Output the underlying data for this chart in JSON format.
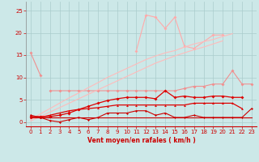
{
  "x": [
    0,
    1,
    2,
    3,
    4,
    5,
    6,
    7,
    8,
    9,
    10,
    11,
    12,
    13,
    14,
    15,
    16,
    17,
    18,
    19,
    20,
    21,
    22,
    23
  ],
  "series": {
    "pink_short": {
      "y": [
        15.5,
        10.5,
        null,
        null,
        null,
        null,
        null,
        null,
        null,
        null,
        null,
        null,
        null,
        null,
        null,
        null,
        null,
        null,
        null,
        null,
        null,
        null,
        null,
        null
      ],
      "color": "#f09090",
      "lw": 0.8,
      "marker": "D",
      "ms": 2
    },
    "pink_flat": {
      "y": [
        null,
        null,
        7.0,
        7.0,
        7.0,
        7.0,
        7.0,
        7.0,
        7.0,
        7.0,
        7.0,
        7.0,
        7.0,
        7.0,
        7.0,
        7.0,
        7.5,
        8.0,
        8.0,
        8.5,
        8.5,
        11.5,
        8.5,
        8.5
      ],
      "color": "#f09090",
      "lw": 0.8,
      "marker": "D",
      "ms": 2
    },
    "pink_peak": {
      "y": [
        null,
        null,
        null,
        null,
        null,
        null,
        null,
        null,
        null,
        null,
        null,
        16.0,
        24.0,
        23.5,
        21.0,
        23.5,
        17.0,
        16.5,
        null,
        19.5,
        19.5,
        null,
        null,
        null
      ],
      "color": "#ffaaaa",
      "lw": 0.8,
      "marker": "D",
      "ms": 2
    },
    "linear_upper": {
      "y": [
        0.5,
        1.8,
        3.0,
        4.2,
        5.4,
        6.5,
        7.7,
        8.8,
        10.0,
        11.0,
        12.0,
        13.0,
        14.0,
        14.8,
        15.5,
        16.0,
        16.8,
        17.5,
        18.0,
        18.5,
        19.2,
        19.8,
        null,
        null
      ],
      "color": "#ffbbbb",
      "lw": 0.8,
      "marker": null,
      "ms": 0
    },
    "linear_lower": {
      "y": [
        0.2,
        1.2,
        2.2,
        3.2,
        4.2,
        5.2,
        6.2,
        7.2,
        8.2,
        9.2,
        10.2,
        11.2,
        12.2,
        13.2,
        14.0,
        14.8,
        15.5,
        16.2,
        16.8,
        17.5,
        18.2,
        null,
        null,
        null
      ],
      "color": "#ffbbbb",
      "lw": 0.8,
      "marker": null,
      "ms": 0
    },
    "red_dots_upper": {
      "y": [
        1.2,
        1.2,
        1.2,
        1.5,
        2.0,
        2.8,
        3.5,
        4.2,
        4.8,
        5.2,
        5.5,
        5.5,
        5.5,
        5.2,
        7.0,
        5.5,
        5.8,
        5.5,
        5.5,
        5.8,
        5.8,
        5.5,
        5.5,
        null
      ],
      "color": "#dd0000",
      "lw": 0.9,
      "marker": "D",
      "ms": 2
    },
    "red_tri": {
      "y": [
        1.0,
        1.0,
        1.5,
        2.0,
        2.5,
        2.8,
        3.0,
        3.2,
        3.5,
        3.8,
        3.8,
        3.8,
        3.8,
        3.8,
        3.8,
        3.8,
        3.8,
        4.2,
        4.2,
        4.2,
        4.2,
        4.2,
        3.0,
        null
      ],
      "color": "#dd0000",
      "lw": 0.9,
      "marker": "^",
      "ms": 2
    },
    "red_wavy": {
      "y": [
        1.5,
        1.0,
        0.3,
        0.0,
        0.5,
        1.0,
        0.5,
        1.0,
        2.0,
        2.0,
        2.0,
        2.5,
        2.5,
        1.5,
        2.0,
        1.0,
        1.0,
        1.5,
        1.0,
        1.0,
        1.0,
        1.0,
        1.0,
        3.0
      ],
      "color": "#cc0000",
      "lw": 0.8,
      "marker": "D",
      "ms": 1.5
    },
    "red_flat_bottom": {
      "y": [
        1.0,
        1.0,
        1.0,
        1.0,
        1.0,
        1.0,
        1.0,
        1.0,
        1.0,
        1.0,
        1.0,
        1.0,
        1.0,
        1.0,
        1.0,
        1.0,
        1.0,
        1.0,
        1.0,
        1.0,
        1.0,
        1.0,
        1.0,
        1.0
      ],
      "color": "#cc0000",
      "lw": 0.8,
      "marker": null,
      "ms": 0
    }
  },
  "bg_color": "#cce8e8",
  "grid_color": "#aacccc",
  "xlabel": "Vent moyen/en rafales ( km/h )",
  "ylim": [
    -1,
    27
  ],
  "xlim": [
    -0.5,
    23.5
  ],
  "yticks": [
    0,
    5,
    10,
    15,
    20,
    25
  ],
  "xticks": [
    0,
    1,
    2,
    3,
    4,
    5,
    6,
    7,
    8,
    9,
    10,
    11,
    12,
    13,
    14,
    15,
    16,
    17,
    18,
    19,
    20,
    21,
    22,
    23
  ]
}
